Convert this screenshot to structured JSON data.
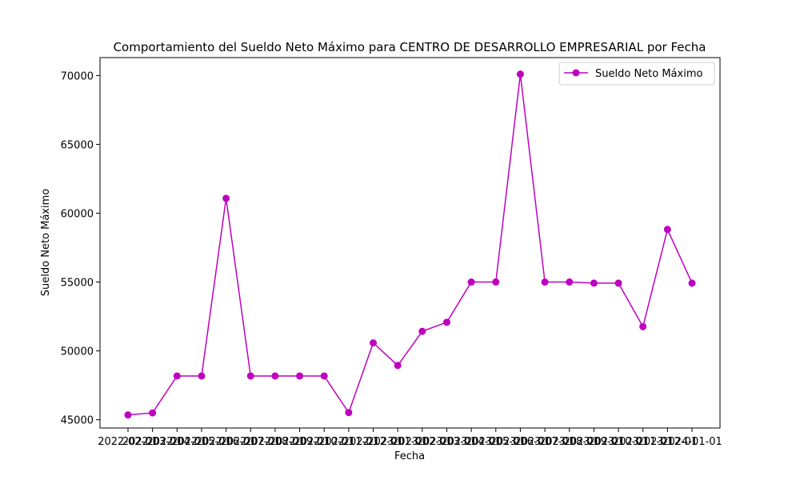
{
  "chart_data": {
    "type": "line",
    "title": "Comportamiento del Sueldo Neto Máximo para CENTRO DE DESARROLLO EMPRESARIAL por Fecha",
    "xlabel": "Fecha",
    "ylabel": "Sueldo Neto Máximo",
    "ylim": [
      44400,
      71300
    ],
    "yticks": [
      45000,
      50000,
      55000,
      60000,
      65000,
      70000
    ],
    "grid": false,
    "legend_position": "top-right",
    "series": [
      {
        "name": "Sueldo Neto Máximo",
        "color": "#bf00bf",
        "marker": "circle",
        "x": [
          "2022-02-01",
          "2022-03-01",
          "2022-04-01",
          "2022-05-01",
          "2022-06-01",
          "2022-07-01",
          "2022-08-01",
          "2022-09-01",
          "2022-10-01",
          "2022-11-01",
          "2022-12-01",
          "2023-01-01",
          "2023-02-01",
          "2023-03-01",
          "2023-04-01",
          "2023-05-01",
          "2023-06-01",
          "2023-07-01",
          "2023-08-01",
          "2023-09-01",
          "2023-10-01",
          "2023-11-01",
          "2023-12-01",
          "2024-01-01"
        ],
        "values": [
          45350,
          45500,
          48180,
          48180,
          61080,
          48180,
          48180,
          48180,
          48180,
          45520,
          50580,
          48940,
          51420,
          52080,
          55000,
          55000,
          70100,
          55000,
          55000,
          54920,
          54920,
          51760,
          58820,
          54920
        ]
      }
    ]
  }
}
